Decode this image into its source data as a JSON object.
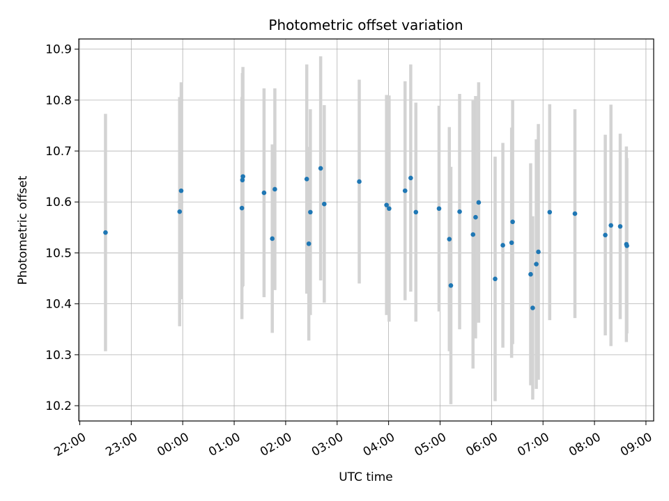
{
  "chart_data": {
    "type": "scatter",
    "title": "Photometric offset variation",
    "xlabel": "UTC time",
    "ylabel": "Photometric offset",
    "x_ticks": [
      "22:00",
      "23:00",
      "00:00",
      "01:00",
      "02:00",
      "03:00",
      "04:00",
      "05:00",
      "06:00",
      "07:00",
      "08:00",
      "09:00"
    ],
    "x_tick_hours": [
      -2,
      -1,
      0,
      1,
      2,
      3,
      4,
      5,
      6,
      7,
      8,
      9
    ],
    "xlim": [
      -2.02,
      9.15
    ],
    "y_ticks": [
      10.2,
      10.3,
      10.4,
      10.5,
      10.6,
      10.7,
      10.8,
      10.9
    ],
    "ylim": [
      10.17,
      10.92
    ],
    "grid": true,
    "colors": {
      "point": "#1f77b4",
      "errorbar": "#d3d3d3"
    },
    "series": [
      {
        "x_hours": [
          -1.5,
          -0.06,
          -0.03,
          1.15,
          1.16,
          1.17,
          1.58,
          1.74,
          1.79,
          2.41,
          2.45,
          2.48,
          2.68,
          2.75,
          3.43,
          3.96,
          4.01,
          4.32,
          4.43,
          4.53,
          4.98,
          5.18,
          5.21,
          5.38,
          5.64,
          5.69,
          5.75,
          6.07,
          6.22,
          6.39,
          6.41,
          6.76,
          6.8,
          6.87,
          6.91,
          7.13,
          7.62,
          8.21,
          8.32,
          8.5,
          8.62,
          8.63
        ],
        "x": [
          "21:30",
          "23:56",
          "23:58",
          "01:09",
          "01:10",
          "01:10",
          "01:35",
          "01:44",
          "01:47",
          "02:25",
          "02:27",
          "02:29",
          "02:41",
          "02:45",
          "03:26",
          "03:58",
          "04:01",
          "04:19",
          "04:26",
          "04:32",
          "04:59",
          "05:11",
          "05:13",
          "05:23",
          "05:38",
          "05:41",
          "05:45",
          "06:04",
          "06:13",
          "06:23",
          "06:25",
          "06:46",
          "06:48",
          "06:52",
          "06:55",
          "07:08",
          "07:37",
          "08:13",
          "08:19",
          "08:30",
          "08:37",
          "08:38"
        ],
        "y": [
          10.54,
          10.581,
          10.622,
          10.588,
          10.643,
          10.65,
          10.618,
          10.528,
          10.625,
          10.645,
          10.518,
          10.58,
          10.666,
          10.596,
          10.64,
          10.594,
          10.587,
          10.622,
          10.647,
          10.58,
          10.587,
          10.527,
          10.436,
          10.581,
          10.536,
          10.57,
          10.599,
          10.449,
          10.515,
          10.52,
          10.561,
          10.458,
          10.392,
          10.478,
          10.502,
          10.58,
          10.577,
          10.535,
          10.554,
          10.552,
          10.517,
          10.514
        ],
        "yerr": [
          0.233,
          0.225,
          0.213,
          0.218,
          0.21,
          0.215,
          0.205,
          0.185,
          0.198,
          0.225,
          0.19,
          0.202,
          0.22,
          0.194,
          0.2,
          0.216,
          0.222,
          0.215,
          0.223,
          0.215,
          0.202,
          0.22,
          0.233,
          0.231,
          0.263,
          0.238,
          0.236,
          0.24,
          0.201,
          0.226,
          0.24,
          0.218,
          0.18,
          0.245,
          0.251,
          0.212,
          0.205,
          0.197,
          0.237,
          0.182,
          0.192,
          0.172
        ]
      }
    ]
  }
}
